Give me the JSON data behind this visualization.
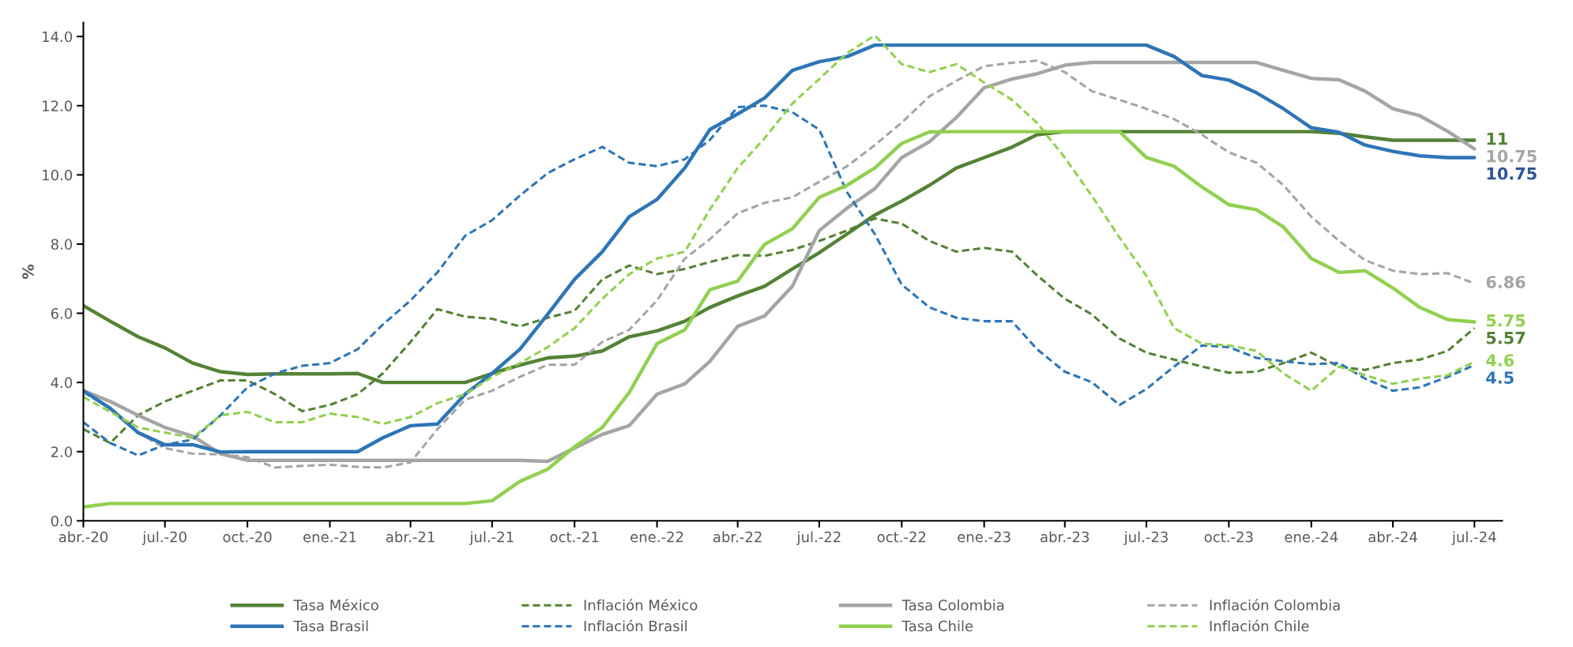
{
  "chart_data": {
    "type": "line",
    "ylabel": "%",
    "x": [
      "2020-04",
      "2020-05",
      "2020-06",
      "2020-07",
      "2020-08",
      "2020-09",
      "2020-10",
      "2020-11",
      "2020-12",
      "2021-01",
      "2021-02",
      "2021-03",
      "2021-04",
      "2021-05",
      "2021-06",
      "2021-07",
      "2021-08",
      "2021-09",
      "2021-10",
      "2021-11",
      "2021-12",
      "2022-01",
      "2022-02",
      "2022-03",
      "2022-04",
      "2022-05",
      "2022-06",
      "2022-07",
      "2022-08",
      "2022-09",
      "2022-10",
      "2022-11",
      "2022-12",
      "2023-01",
      "2023-02",
      "2023-03",
      "2023-04",
      "2023-05",
      "2023-06",
      "2023-07",
      "2023-08",
      "2023-09",
      "2023-10",
      "2023-11",
      "2023-12",
      "2024-01",
      "2024-02",
      "2024-03",
      "2024-04",
      "2024-05",
      "2024-06",
      "2024-07"
    ],
    "xlim": [
      "2020-04",
      "2024-08"
    ],
    "xticks": [
      {
        "value": "2020-04",
        "label": "abr.-20"
      },
      {
        "value": "2020-07",
        "label": "jul.-20"
      },
      {
        "value": "2020-10",
        "label": "oct.-20"
      },
      {
        "value": "2021-01",
        "label": "ene.-21"
      },
      {
        "value": "2021-04",
        "label": "abr.-21"
      },
      {
        "value": "2021-07",
        "label": "jul.-21"
      },
      {
        "value": "2021-10",
        "label": "oct.-21"
      },
      {
        "value": "2022-01",
        "label": "ene.-22"
      },
      {
        "value": "2022-04",
        "label": "abr.-22"
      },
      {
        "value": "2022-07",
        "label": "jul.-22"
      },
      {
        "value": "2022-10",
        "label": "oct.-22"
      },
      {
        "value": "2023-01",
        "label": "ene.-23"
      },
      {
        "value": "2023-04",
        "label": "abr.-23"
      },
      {
        "value": "2023-07",
        "label": "jul.-23"
      },
      {
        "value": "2023-10",
        "label": "oct.-23"
      },
      {
        "value": "2024-01",
        "label": "ene.-24"
      },
      {
        "value": "2024-04",
        "label": "abr.-24"
      },
      {
        "value": "2024-07",
        "label": "jul.-24"
      }
    ],
    "ylim": [
      0,
      14.4
    ],
    "yticks": [
      {
        "value": 0,
        "label": "0.0"
      },
      {
        "value": 2,
        "label": "2.0"
      },
      {
        "value": 4,
        "label": "4.0"
      },
      {
        "value": 6,
        "label": "6.0"
      },
      {
        "value": 8,
        "label": "8.0"
      },
      {
        "value": 10,
        "label": "10.0"
      },
      {
        "value": 12,
        "label": "12.0"
      },
      {
        "value": 14,
        "label": "14.0"
      }
    ],
    "grid": false,
    "legend": "bottom",
    "marker": "none",
    "series": [
      {
        "name": "Tasa México",
        "color": "#548235",
        "line_style": "solid",
        "values": [
          6.22,
          5.77,
          5.32,
          5.0,
          4.56,
          4.31,
          4.23,
          4.25,
          4.25,
          4.25,
          4.26,
          4.0,
          4.0,
          4.0,
          4.0,
          4.26,
          4.5,
          4.71,
          4.76,
          4.91,
          5.32,
          5.49,
          5.77,
          6.17,
          6.5,
          6.78,
          7.28,
          7.75,
          8.29,
          8.84,
          9.24,
          9.7,
          10.2,
          10.5,
          10.8,
          11.16,
          11.25,
          11.25,
          11.25,
          11.25,
          11.25,
          11.25,
          11.25,
          11.25,
          11.25,
          11.25,
          11.2,
          11.1,
          11.0,
          11.0,
          11.0,
          11.0
        ],
        "value_labels": [
          null,
          null,
          null,
          null,
          null,
          null,
          null,
          null,
          null,
          null,
          null,
          null,
          null,
          null,
          null,
          null,
          null,
          null,
          null,
          null,
          null,
          null,
          null,
          null,
          null,
          null,
          null,
          null,
          null,
          null,
          null,
          null,
          null,
          null,
          null,
          null,
          null,
          null,
          null,
          null,
          null,
          null,
          null,
          null,
          null,
          null,
          null,
          null,
          null,
          null,
          null,
          "11"
        ]
      },
      {
        "name": "Inflación México",
        "color": "#548235",
        "line_style": "dashed",
        "values": [
          2.65,
          2.25,
          3.05,
          3.45,
          3.76,
          4.06,
          4.06,
          3.66,
          3.17,
          3.35,
          3.66,
          4.26,
          5.17,
          6.12,
          5.9,
          5.84,
          5.62,
          5.87,
          6.07,
          6.98,
          7.38,
          7.13,
          7.28,
          7.48,
          7.68,
          7.66,
          7.83,
          8.09,
          8.39,
          8.74,
          8.59,
          8.09,
          7.78,
          7.89,
          7.78,
          7.1,
          6.42,
          5.97,
          5.27,
          4.86,
          4.66,
          4.46,
          4.28,
          4.31,
          4.56,
          4.86,
          4.46,
          4.36,
          4.56,
          4.66,
          4.91,
          5.57
        ],
        "value_labels": [
          null,
          null,
          null,
          null,
          null,
          null,
          null,
          null,
          null,
          null,
          null,
          null,
          null,
          null,
          null,
          null,
          null,
          null,
          null,
          null,
          null,
          null,
          null,
          null,
          null,
          null,
          null,
          null,
          null,
          null,
          null,
          null,
          null,
          null,
          null,
          null,
          null,
          null,
          null,
          null,
          null,
          null,
          null,
          null,
          null,
          null,
          null,
          null,
          null,
          null,
          null,
          "5.57"
        ]
      },
      {
        "name": "Tasa Colombia",
        "color": "#a5a5a5",
        "line_style": "solid",
        "values": [
          3.76,
          3.45,
          3.05,
          2.7,
          2.45,
          1.94,
          1.75,
          1.75,
          1.75,
          1.75,
          1.75,
          1.75,
          1.75,
          1.75,
          1.75,
          1.75,
          1.75,
          1.72,
          2.1,
          2.5,
          2.75,
          3.66,
          3.96,
          4.61,
          5.62,
          5.92,
          6.78,
          8.39,
          9.04,
          9.6,
          10.5,
          10.96,
          11.66,
          12.52,
          12.77,
          12.92,
          13.17,
          13.25,
          13.25,
          13.25,
          13.25,
          13.25,
          13.25,
          13.25,
          13.02,
          12.79,
          12.75,
          12.42,
          11.91,
          11.71,
          11.26,
          10.75
        ],
        "value_labels": [
          null,
          null,
          null,
          null,
          null,
          null,
          null,
          null,
          null,
          null,
          null,
          null,
          null,
          null,
          null,
          null,
          null,
          null,
          null,
          null,
          null,
          null,
          null,
          null,
          null,
          null,
          null,
          null,
          null,
          null,
          null,
          null,
          null,
          null,
          null,
          null,
          null,
          null,
          null,
          null,
          null,
          null,
          null,
          null,
          null,
          null,
          null,
          null,
          null,
          null,
          null,
          "10.75"
        ]
      },
      {
        "name": "Inflación Colombia",
        "color": "#a5a5a5",
        "line_style": "dashed",
        "values": [
          3.71,
          3.25,
          2.55,
          2.1,
          1.94,
          1.92,
          1.84,
          1.54,
          1.59,
          1.62,
          1.56,
          1.54,
          1.69,
          2.65,
          3.5,
          3.76,
          4.16,
          4.51,
          4.51,
          5.17,
          5.52,
          6.37,
          7.58,
          8.14,
          8.89,
          9.19,
          9.35,
          9.8,
          10.25,
          10.86,
          11.51,
          12.27,
          12.72,
          13.14,
          13.24,
          13.3,
          12.97,
          12.42,
          12.17,
          11.91,
          11.61,
          11.16,
          10.65,
          10.35,
          9.7,
          8.79,
          8.09,
          7.53,
          7.23,
          7.13,
          7.16,
          6.86
        ],
        "value_labels": [
          null,
          null,
          null,
          null,
          null,
          null,
          null,
          null,
          null,
          null,
          null,
          null,
          null,
          null,
          null,
          null,
          null,
          null,
          null,
          null,
          null,
          null,
          null,
          null,
          null,
          null,
          null,
          null,
          null,
          null,
          null,
          null,
          null,
          null,
          null,
          null,
          null,
          null,
          null,
          null,
          null,
          null,
          null,
          null,
          null,
          null,
          null,
          null,
          null,
          null,
          null,
          "6.86"
        ]
      },
      {
        "name": "Tasa Brasil",
        "color": "#2e75b6",
        "line_style": "solid",
        "values": [
          3.76,
          3.25,
          2.55,
          2.2,
          2.2,
          1.99,
          2.0,
          2.0,
          2.0,
          2.0,
          2.0,
          2.4,
          2.75,
          2.8,
          3.66,
          4.26,
          4.96,
          5.97,
          6.98,
          7.78,
          8.79,
          9.29,
          10.2,
          11.31,
          11.76,
          12.22,
          13.02,
          13.27,
          13.42,
          13.75,
          13.75,
          13.75,
          13.75,
          13.75,
          13.75,
          13.75,
          13.75,
          13.75,
          13.75,
          13.75,
          13.42,
          12.87,
          12.74,
          12.37,
          11.91,
          11.36,
          11.23,
          10.86,
          10.68,
          10.55,
          10.5,
          10.5
        ]
      },
      {
        "name": "Inflación Brasil",
        "color": "#2e75b6",
        "line_style": "dashed",
        "values": [
          2.85,
          2.25,
          1.89,
          2.2,
          2.35,
          3.05,
          3.86,
          4.26,
          4.48,
          4.56,
          4.96,
          5.67,
          6.37,
          7.18,
          8.24,
          8.69,
          9.4,
          10.05,
          10.45,
          10.81,
          10.35,
          10.25,
          10.45,
          11.01,
          11.96,
          12.0,
          11.81,
          11.31,
          9.5,
          8.29,
          6.83,
          6.17,
          5.87,
          5.77,
          5.77,
          4.96,
          4.31,
          4.01,
          3.35,
          3.81,
          4.46,
          5.07,
          5.02,
          4.71,
          4.61,
          4.53,
          4.56,
          4.11,
          3.76,
          3.86,
          4.16,
          4.5
        ],
        "value_labels": [
          null,
          null,
          null,
          null,
          null,
          null,
          null,
          null,
          null,
          null,
          null,
          null,
          null,
          null,
          null,
          null,
          null,
          null,
          null,
          null,
          null,
          null,
          null,
          null,
          null,
          null,
          null,
          null,
          null,
          null,
          null,
          null,
          null,
          null,
          null,
          null,
          null,
          null,
          null,
          null,
          null,
          null,
          null,
          null,
          null,
          null,
          null,
          null,
          null,
          null,
          null,
          "4.5"
        ]
      },
      {
        "name": "Tasa Chile",
        "color": "#92d050",
        "line_style": "solid",
        "values": [
          0.4,
          0.5,
          0.5,
          0.5,
          0.5,
          0.5,
          0.5,
          0.5,
          0.5,
          0.5,
          0.5,
          0.5,
          0.5,
          0.5,
          0.5,
          0.58,
          1.14,
          1.49,
          2.14,
          2.7,
          3.71,
          5.12,
          5.52,
          6.68,
          6.93,
          7.99,
          8.44,
          9.35,
          9.7,
          10.2,
          10.91,
          11.24,
          11.25,
          11.25,
          11.25,
          11.25,
          11.25,
          11.25,
          11.25,
          10.5,
          10.25,
          9.65,
          9.14,
          8.99,
          8.49,
          7.58,
          7.18,
          7.23,
          6.73,
          6.17,
          5.82,
          5.75
        ],
        "value_labels": [
          null,
          null,
          null,
          null,
          null,
          null,
          null,
          null,
          null,
          null,
          null,
          null,
          null,
          null,
          null,
          null,
          null,
          null,
          null,
          null,
          null,
          null,
          null,
          null,
          null,
          null,
          null,
          null,
          null,
          null,
          null,
          null,
          null,
          null,
          null,
          null,
          null,
          null,
          null,
          null,
          null,
          null,
          null,
          null,
          null,
          null,
          null,
          null,
          null,
          null,
          null,
          "5.75"
        ]
      },
      {
        "name": "Inflación Chile",
        "color": "#92d050",
        "line_style": "dashed",
        "values": [
          3.58,
          3.15,
          2.7,
          2.55,
          2.4,
          3.05,
          3.15,
          2.85,
          2.85,
          3.1,
          3.0,
          2.8,
          3.0,
          3.4,
          3.66,
          4.16,
          4.56,
          5.02,
          5.57,
          6.42,
          7.13,
          7.58,
          7.78,
          9.0,
          10.2,
          11.06,
          12.06,
          12.77,
          13.52,
          14.03,
          13.2,
          12.97,
          13.2,
          12.67,
          12.17,
          11.5,
          10.5,
          9.4,
          8.19,
          7.08,
          5.57,
          5.12,
          5.07,
          4.91,
          4.26,
          3.76,
          4.46,
          4.21,
          3.96,
          4.11,
          4.21,
          4.6
        ],
        "value_labels": [
          null,
          null,
          null,
          null,
          null,
          null,
          null,
          null,
          null,
          null,
          null,
          null,
          null,
          null,
          null,
          null,
          null,
          null,
          null,
          null,
          null,
          null,
          null,
          null,
          null,
          null,
          null,
          null,
          null,
          null,
          null,
          null,
          null,
          null,
          null,
          null,
          null,
          null,
          null,
          null,
          null,
          null,
          null,
          null,
          null,
          null,
          null,
          null,
          null,
          null,
          null,
          "4.6"
        ]
      }
    ],
    "annotations": [
      {
        "text": "10.75",
        "x": "2024-07",
        "y": 10.5
      }
    ]
  }
}
